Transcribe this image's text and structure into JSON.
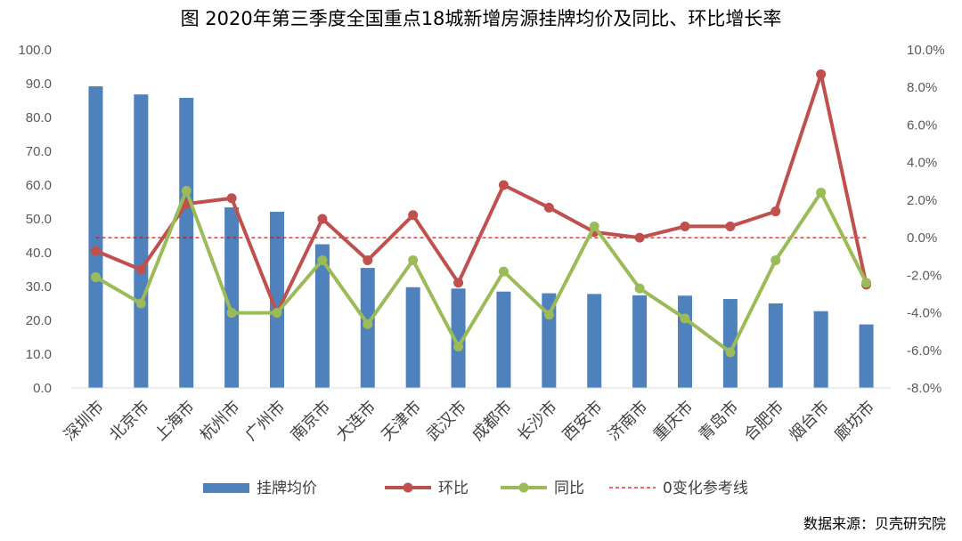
{
  "chart_data": {
    "type": "bar",
    "title": "图 2020年第三季度全国重点18城新增房源挂牌均价及同比、环比增长率",
    "categories": [
      "深圳市",
      "北京市",
      "上海市",
      "杭州市",
      "广州市",
      "南京市",
      "大连市",
      "天津市",
      "武汉市",
      "成都市",
      "长沙市",
      "西安市",
      "济南市",
      "重庆市",
      "青岛市",
      "合肥市",
      "烟台市",
      "廊坊市"
    ],
    "y_left": {
      "ylim": [
        0,
        100
      ],
      "ticks": [
        "100.0",
        "90.0",
        "80.0",
        "70.0",
        "60.0",
        "50.0",
        "40.0",
        "30.0",
        "20.0",
        "10.0",
        "0.0"
      ]
    },
    "y_right": {
      "ylim": [
        -8,
        10
      ],
      "ticks": [
        "10.0%",
        "8.0%",
        "6.0%",
        "4.0%",
        "2.0%",
        "0.0%",
        "-2.0%",
        "-4.0%",
        "-6.0%",
        "-8.0%"
      ]
    },
    "series": [
      {
        "name": "挂牌均价",
        "type": "bar",
        "axis": "left",
        "color": "#4f81bd",
        "values": [
          89.2,
          86.8,
          85.8,
          53.4,
          52.1,
          42.5,
          35.5,
          29.8,
          29.4,
          28.5,
          28.0,
          27.8,
          27.4,
          27.3,
          26.3,
          25.0,
          22.7,
          18.8
        ]
      },
      {
        "name": "环比",
        "type": "line",
        "axis": "right",
        "color": "#c0504d",
        "values": [
          -0.7,
          -1.7,
          1.8,
          2.1,
          -4.0,
          1.0,
          -1.2,
          1.2,
          -2.4,
          2.8,
          1.6,
          0.3,
          0.0,
          0.6,
          0.6,
          1.4,
          8.7,
          -2.5
        ]
      },
      {
        "name": "同比",
        "type": "line",
        "axis": "right",
        "color": "#9bbb59",
        "values": [
          -2.1,
          -3.5,
          2.5,
          -4.0,
          -4.0,
          -1.2,
          -4.6,
          -1.2,
          -5.8,
          -1.8,
          -4.1,
          0.6,
          -2.7,
          -4.3,
          -6.1,
          -1.2,
          2.4,
          -2.4
        ]
      },
      {
        "name": "0变化参考线",
        "type": "reference",
        "axis": "right",
        "color": "#ff0000",
        "value": 0
      }
    ],
    "legend_position": "bottom",
    "grid": false
  },
  "footer": {
    "source": "数据来源：贝壳研究院"
  }
}
